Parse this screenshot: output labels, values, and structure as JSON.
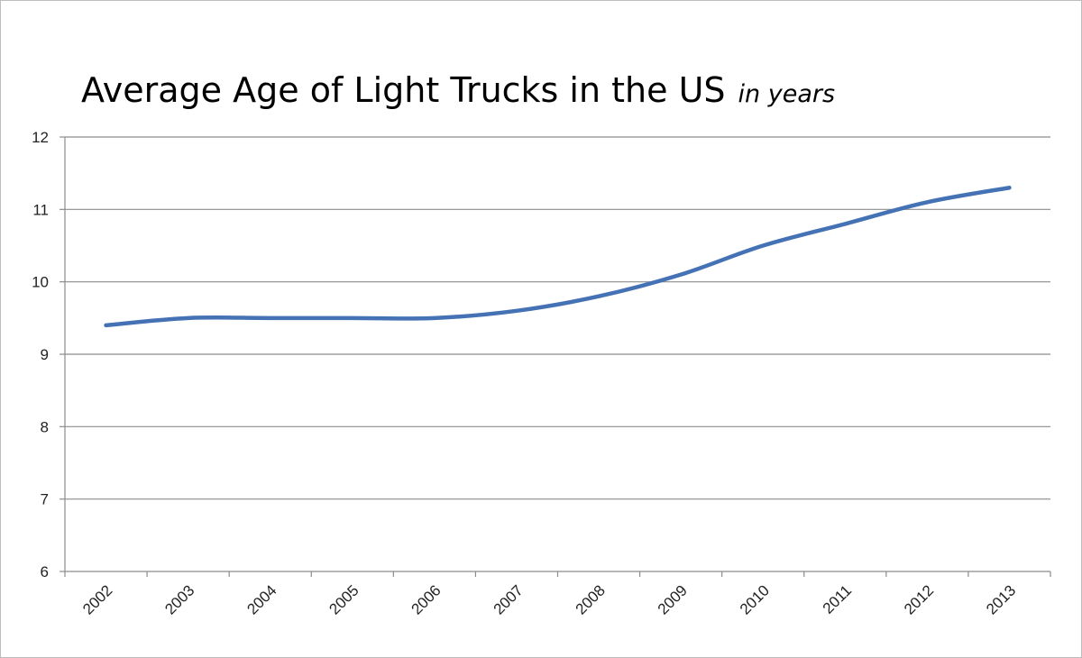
{
  "chart_data": {
    "type": "line",
    "title": "Average Age of Light Trucks in the US",
    "subtitle": "in years",
    "xlabel": "",
    "ylabel": "",
    "categories": [
      "2002",
      "2003",
      "2004",
      "2005",
      "2006",
      "2007",
      "2008",
      "2009",
      "2010",
      "2011",
      "2012",
      "2013"
    ],
    "series": [
      {
        "values": [
          9.4,
          9.5,
          9.5,
          9.5,
          9.5,
          9.6,
          9.8,
          10.1,
          10.5,
          10.8,
          11.1,
          11.3
        ]
      }
    ],
    "ylim": [
      6,
      12
    ],
    "yticks": [
      6,
      7,
      8,
      9,
      10,
      11,
      12
    ],
    "grid": true,
    "legend": "none",
    "line_color": "#4472b4"
  }
}
